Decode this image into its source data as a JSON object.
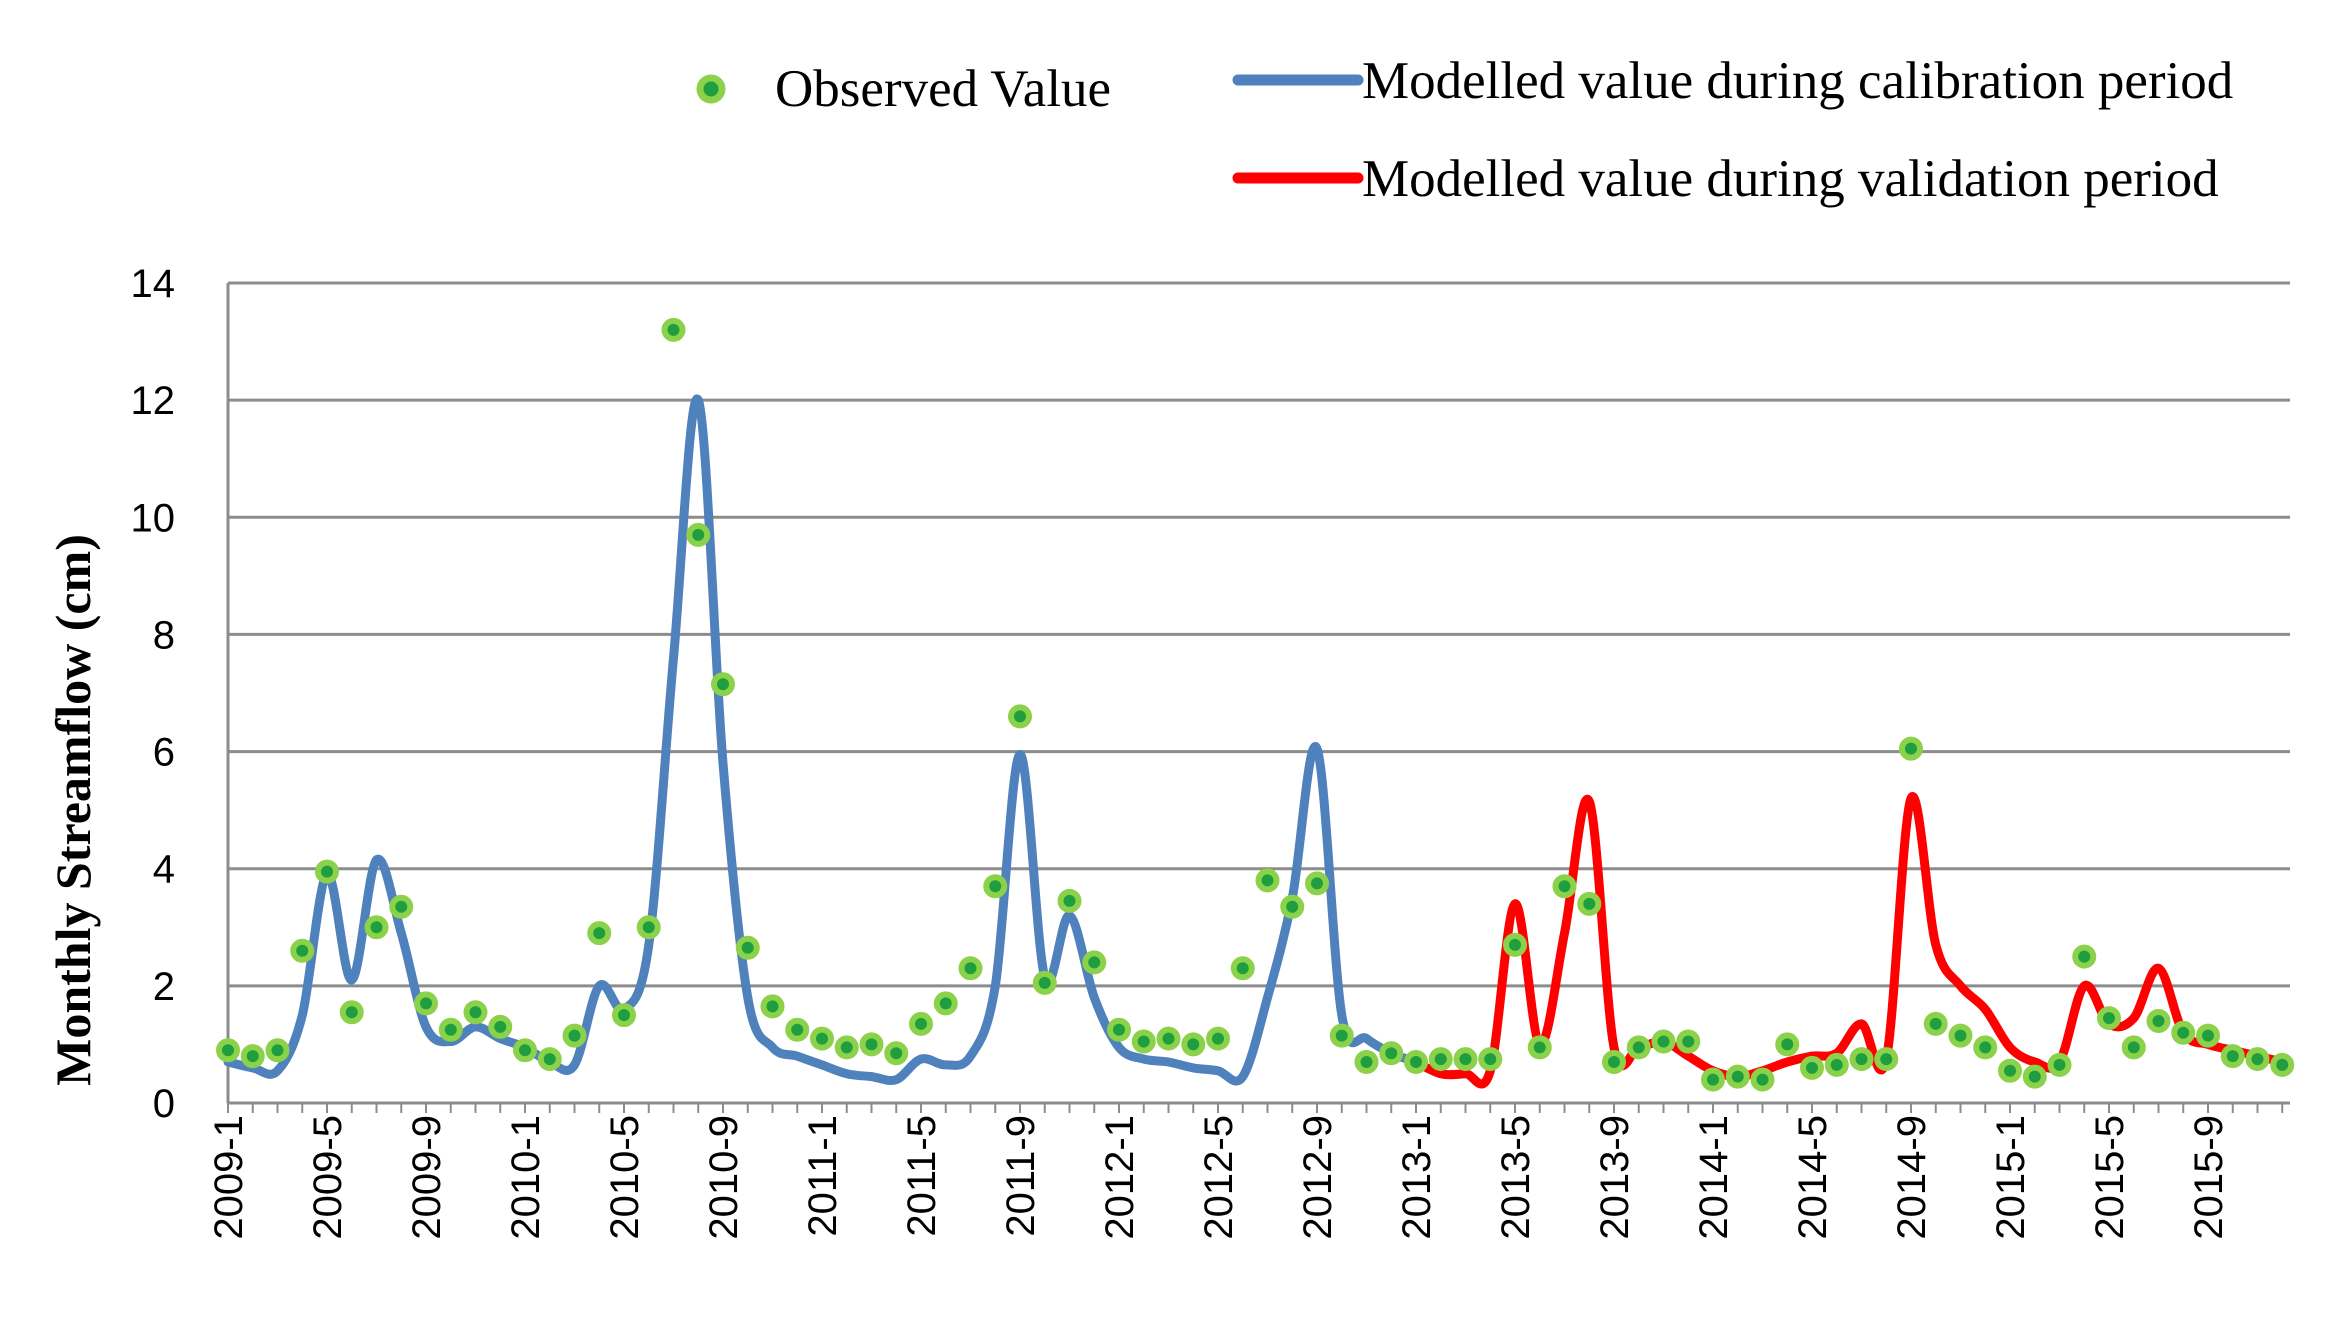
{
  "chart_data": {
    "type": "line",
    "title": "",
    "xlabel": "",
    "ylabel": "Monthly Streamflow (cm)",
    "ylim": [
      0,
      14
    ],
    "yticks": [
      0,
      2,
      4,
      6,
      8,
      10,
      12,
      14
    ],
    "grid": true,
    "legend": {
      "placement": "top",
      "entries": [
        {
          "label": "Observed Value",
          "kind": "marker",
          "color": "#8bd24a",
          "fill": "#1f9e40"
        },
        {
          "label": "Modelled value during calibration period",
          "kind": "line",
          "color": "#4f81bd"
        },
        {
          "label": "Modelled value during validation period",
          "kind": "line",
          "color": "#ff0000"
        }
      ]
    },
    "x_tick_labels": [
      "2009-1",
      "2009-5",
      "2009-9",
      "2010-1",
      "2010-5",
      "2010-9",
      "2011-1",
      "2011-5",
      "2011-9",
      "2012-1",
      "2012-5",
      "2012-9",
      "2013-1",
      "2013-5",
      "2013-9",
      "2014-1",
      "2014-5",
      "2014-9",
      "2015-1",
      "2015-5",
      "2015-9"
    ],
    "x_tick_step": 4,
    "n_months": 84,
    "observed": {
      "name": "Observed Value",
      "values": [
        0.9,
        0.8,
        0.9,
        2.6,
        3.95,
        1.55,
        3.0,
        3.35,
        1.7,
        1.25,
        1.55,
        1.3,
        0.9,
        0.75,
        1.15,
        2.9,
        1.5,
        3.0,
        13.2,
        9.7,
        7.15,
        2.65,
        1.65,
        1.25,
        1.1,
        0.95,
        1.0,
        0.85,
        1.35,
        1.7,
        2.3,
        3.7,
        6.6,
        2.05,
        3.45,
        2.4,
        1.25,
        1.05,
        1.1,
        1.0,
        1.1,
        2.3,
        3.8,
        3.35,
        3.75,
        1.15,
        0.7,
        0.85,
        0.7,
        0.75,
        0.75,
        0.75,
        2.7,
        0.95,
        3.7,
        3.4,
        0.7,
        0.95,
        1.05,
        1.05,
        0.4,
        0.45,
        0.4,
        1.0,
        0.6,
        0.65,
        0.75,
        0.75,
        6.05,
        1.35,
        1.15,
        0.95,
        0.55,
        0.45,
        0.65,
        2.5,
        1.45,
        0.95,
        1.4,
        1.2,
        1.15,
        0.8,
        0.75,
        0.65
      ]
    },
    "calibration": {
      "name": "Modelled value during calibration period",
      "values": [
        0.7,
        0.6,
        0.55,
        1.5,
        3.9,
        2.1,
        4.15,
        2.9,
        1.3,
        1.05,
        1.3,
        1.1,
        0.95,
        0.7,
        0.65,
        2.0,
        1.6,
        2.7,
        7.6,
        12.0,
        5.8,
        1.8,
        0.95,
        0.8,
        0.65,
        0.5,
        0.45,
        0.4,
        0.75,
        0.65,
        0.8,
        2.0,
        5.95,
        2.15,
        3.2,
        1.8,
        0.95,
        0.75,
        0.7,
        0.6,
        0.55,
        0.45,
        1.8,
        3.5,
        6.05,
        1.5,
        1.1,
        0.85,
        0.7
      ]
    },
    "validation": {
      "name": "Modelled value during validation period",
      "values": [
        0.7,
        0.5,
        0.5,
        0.55,
        3.4,
        1.0,
        2.9,
        5.15,
        0.95,
        0.95,
        1.05,
        0.8,
        0.55,
        0.45,
        0.55,
        0.7,
        0.8,
        0.85,
        1.35,
        0.75,
        5.2,
        2.7,
        2.0,
        1.6,
        0.95,
        0.7,
        0.7,
        2.0,
        1.35,
        1.45,
        2.3,
        1.2,
        1.0,
        0.9,
        0.8,
        0.7
      ]
    }
  }
}
